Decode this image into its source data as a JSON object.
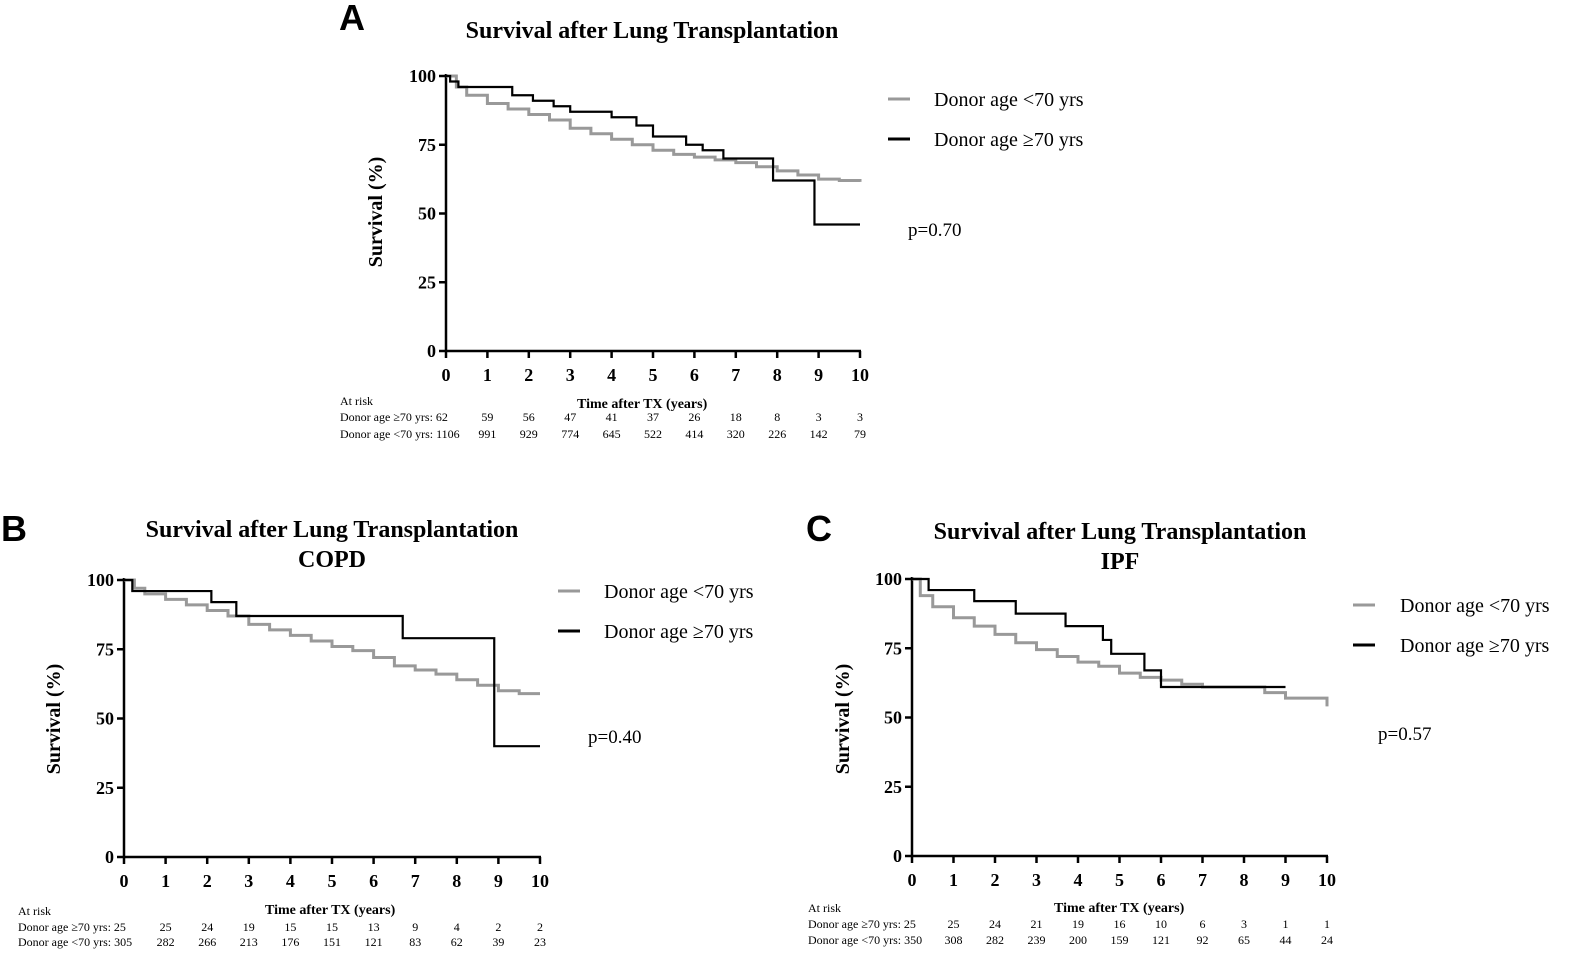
{
  "chart_data": [
    {
      "type": "line",
      "panel": "A",
      "title": "Survival after Lung Transplantation",
      "subtitle": "",
      "xlabel": "Time after TX (years)",
      "ylabel": "Survival (%)",
      "xlim": [
        0,
        10
      ],
      "ylim": [
        0,
        100
      ],
      "x_ticks": [
        "0",
        "1",
        "2",
        "3",
        "4",
        "5",
        "6",
        "7",
        "8",
        "9",
        "10"
      ],
      "y_ticks": [
        "0",
        "25",
        "50",
        "75",
        "100"
      ],
      "legend_position": "right",
      "grid": false,
      "p_value": "p=0.70",
      "series": [
        {
          "name": "Donor age <70 yrs",
          "color": "#999999",
          "x": [
            0,
            0.25,
            0.5,
            1,
            1.5,
            2,
            2.5,
            3,
            3.5,
            4,
            4.5,
            5,
            5.5,
            6,
            6.5,
            7,
            7.5,
            8,
            8.5,
            9,
            9.5,
            10
          ],
          "y": [
            100,
            96,
            93,
            90,
            88,
            86,
            84,
            81,
            79,
            77,
            75,
            73,
            71.5,
            70.5,
            69.5,
            68.5,
            67,
            65.5,
            64,
            62.5,
            62,
            61.5
          ]
        },
        {
          "name": "Donor age ≥70 yrs",
          "color": "#000000",
          "x": [
            0,
            0.1,
            0.3,
            1.6,
            2.1,
            2.6,
            3,
            4,
            4.6,
            5,
            5.8,
            6.2,
            6.7,
            7.9,
            8.9,
            10
          ],
          "y": [
            100,
            98,
            96,
            93,
            91,
            89,
            87,
            85,
            82,
            78,
            75,
            73,
            70,
            62,
            46,
            46
          ]
        }
      ],
      "at_risk": {
        "label": "At risk",
        "rows": [
          {
            "label": "Donor age ≥70 yrs: 62",
            "values": [
              "59",
              "56",
              "47",
              "41",
              "37",
              "26",
              "18",
              "8",
              "3",
              "3"
            ]
          },
          {
            "label": "Donor age <70 yrs: 1106",
            "values": [
              "991",
              "929",
              "774",
              "645",
              "522",
              "414",
              "320",
              "226",
              "142",
              "79"
            ]
          }
        ]
      }
    },
    {
      "type": "line",
      "panel": "B",
      "title": "Survival after Lung Transplantation",
      "subtitle": "COPD",
      "xlabel": "Time after TX (years)",
      "ylabel": "Survival (%)",
      "xlim": [
        0,
        10
      ],
      "ylim": [
        0,
        100
      ],
      "x_ticks": [
        "0",
        "1",
        "2",
        "3",
        "4",
        "5",
        "6",
        "7",
        "8",
        "9",
        "10"
      ],
      "y_ticks": [
        "0",
        "25",
        "50",
        "75",
        "100"
      ],
      "legend_position": "right",
      "grid": false,
      "p_value": "p=0.40",
      "series": [
        {
          "name": "Donor age <70 yrs",
          "color": "#999999",
          "x": [
            0,
            0.25,
            0.5,
            1,
            1.5,
            2,
            2.5,
            3,
            3.5,
            4,
            4.5,
            5,
            5.5,
            6,
            6.5,
            7,
            7.5,
            8,
            8.5,
            9,
            9.5,
            10
          ],
          "y": [
            100,
            97,
            95,
            93,
            91,
            89,
            87,
            84,
            82,
            80,
            78,
            76,
            74.5,
            72,
            69,
            67.5,
            66,
            64,
            62,
            60,
            59,
            59
          ]
        },
        {
          "name": "Donor age ≥70 yrs",
          "color": "#000000",
          "x": [
            0,
            0.2,
            2.1,
            2.7,
            6.7,
            8.9,
            10
          ],
          "y": [
            100,
            96,
            92,
            87,
            79,
            40,
            40
          ]
        }
      ],
      "at_risk": {
        "label": "At risk",
        "rows": [
          {
            "label": "Donor age ≥70 yrs: 25",
            "values": [
              "25",
              "24",
              "19",
              "15",
              "15",
              "13",
              "9",
              "4",
              "2",
              "2"
            ]
          },
          {
            "label": "Donor age <70 yrs: 305",
            "values": [
              "282",
              "266",
              "213",
              "176",
              "151",
              "121",
              "83",
              "62",
              "39",
              "23"
            ]
          }
        ]
      }
    },
    {
      "type": "line",
      "panel": "C",
      "title": "Survival after Lung Transplantation",
      "subtitle": "IPF",
      "xlabel": "Time after TX (years)",
      "ylabel": "Survival (%)",
      "xlim": [
        0,
        10
      ],
      "ylim": [
        0,
        100
      ],
      "x_ticks": [
        "0",
        "1",
        "2",
        "3",
        "4",
        "5",
        "6",
        "7",
        "8",
        "9",
        "10"
      ],
      "y_ticks": [
        "0",
        "25",
        "50",
        "75",
        "100"
      ],
      "legend_position": "right",
      "grid": false,
      "p_value": "p=0.57",
      "series": [
        {
          "name": "Donor age <70 yrs",
          "color": "#999999",
          "x": [
            0,
            0.2,
            0.5,
            1,
            1.5,
            2,
            2.5,
            3,
            3.5,
            4,
            4.5,
            5,
            5.5,
            6,
            6.5,
            7,
            7.5,
            8,
            8.5,
            9,
            9.5,
            10
          ],
          "y": [
            100,
            94,
            90,
            86,
            83,
            80,
            77,
            74.5,
            72,
            70,
            68.5,
            66,
            64.5,
            63.5,
            62,
            61,
            61,
            61,
            59,
            57,
            57,
            54
          ]
        },
        {
          "name": "Donor age ≥70 yrs",
          "color": "#000000",
          "x": [
            0,
            0.4,
            1.5,
            2.5,
            3.7,
            4.6,
            4.8,
            5.6,
            6,
            9
          ],
          "y": [
            100,
            96,
            92,
            87.5,
            83,
            78,
            73,
            67,
            61,
            61
          ]
        }
      ],
      "at_risk": {
        "label": "At risk",
        "rows": [
          {
            "label": "Donor age ≥70 yrs: 25",
            "values": [
              "25",
              "24",
              "21",
              "19",
              "16",
              "10",
              "6",
              "3",
              "1",
              "1"
            ]
          },
          {
            "label": "Donor age <70 yrs: 350",
            "values": [
              "308",
              "282",
              "239",
              "200",
              "159",
              "121",
              "92",
              "65",
              "44",
              "24"
            ]
          }
        ]
      }
    }
  ]
}
